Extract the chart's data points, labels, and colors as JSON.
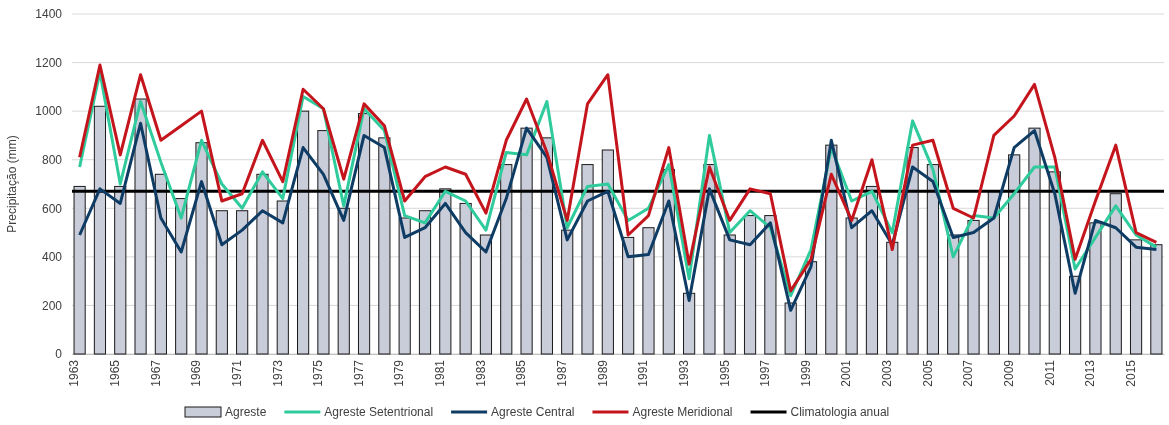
{
  "chart_data": {
    "type": "bar",
    "ylabel": "Precipitação (mm)",
    "categories": [
      "1963",
      null,
      "1965",
      null,
      "1967",
      null,
      "1969",
      null,
      "1971",
      null,
      "1973",
      null,
      "1975",
      null,
      "1977",
      null,
      "1979",
      null,
      "1981",
      null,
      "1983",
      null,
      "1985",
      null,
      "1987",
      null,
      "1989",
      null,
      "1991",
      null,
      "1993",
      null,
      "1995",
      null,
      "1997",
      null,
      "1999",
      null,
      "2001",
      null,
      "2003",
      null,
      "2005",
      null,
      "2007",
      null,
      "2009",
      null,
      "2011",
      null,
      "2013",
      null,
      "2015",
      null
    ],
    "series": [
      {
        "name": "Agreste",
        "color": "#c9ccd9",
        "values": [
          690,
          1020,
          690,
          1050,
          740,
          640,
          870,
          590,
          590,
          740,
          630,
          1000,
          920,
          600,
          990,
          890,
          560,
          590,
          680,
          620,
          490,
          780,
          930,
          890,
          510,
          780,
          840,
          480,
          520,
          760,
          250,
          780,
          490,
          570,
          570,
          210,
          380,
          860,
          560,
          690,
          460,
          850,
          780,
          490,
          550,
          670,
          820,
          930,
          750,
          320,
          540,
          660,
          470,
          450
        ]
      },
      {
        "name": "Agreste Setentrional",
        "type": "line",
        "color": "#2fcb9c",
        "values": [
          770,
          1160,
          700,
          1040,
          790,
          560,
          880,
          700,
          600,
          750,
          640,
          1060,
          1010,
          610,
          1010,
          920,
          570,
          540,
          670,
          630,
          510,
          830,
          820,
          1040,
          520,
          690,
          700,
          550,
          600,
          780,
          310,
          900,
          500,
          590,
          520,
          240,
          430,
          850,
          630,
          670,
          500,
          960,
          760,
          400,
          570,
          560,
          660,
          770,
          770,
          350,
          480,
          610,
          490,
          440
        ]
      },
      {
        "name": "Agreste Central",
        "type": "line",
        "color": "#0e3c64",
        "values": [
          490,
          680,
          620,
          950,
          560,
          420,
          710,
          450,
          510,
          590,
          540,
          850,
          740,
          550,
          900,
          850,
          480,
          520,
          620,
          500,
          420,
          640,
          930,
          810,
          470,
          630,
          670,
          400,
          410,
          630,
          220,
          680,
          470,
          450,
          540,
          180,
          360,
          880,
          520,
          590,
          450,
          770,
          710,
          480,
          500,
          560,
          850,
          920,
          660,
          250,
          550,
          520,
          440,
          430
        ]
      },
      {
        "name": "Agreste Meridional",
        "type": "line",
        "color": "#c4141c",
        "values": [
          810,
          1190,
          820,
          1150,
          880,
          940,
          1000,
          630,
          660,
          880,
          710,
          1090,
          1010,
          720,
          1030,
          940,
          630,
          730,
          770,
          740,
          580,
          880,
          1050,
          830,
          550,
          1030,
          1150,
          490,
          570,
          850,
          370,
          770,
          550,
          680,
          660,
          260,
          390,
          740,
          550,
          800,
          430,
          860,
          880,
          600,
          560,
          900,
          980,
          1110,
          810,
          390,
          630,
          860,
          500,
          460
        ]
      }
    ],
    "ref_lines": [
      {
        "axis": "y",
        "value": 670,
        "label": "Climatologia anual",
        "color": "#000000"
      }
    ],
    "ylim": [
      0,
      1400
    ],
    "yticks": [
      0,
      200,
      400,
      600,
      800,
      1000,
      1200,
      1400
    ],
    "grid": "y",
    "legend": "bottom"
  }
}
